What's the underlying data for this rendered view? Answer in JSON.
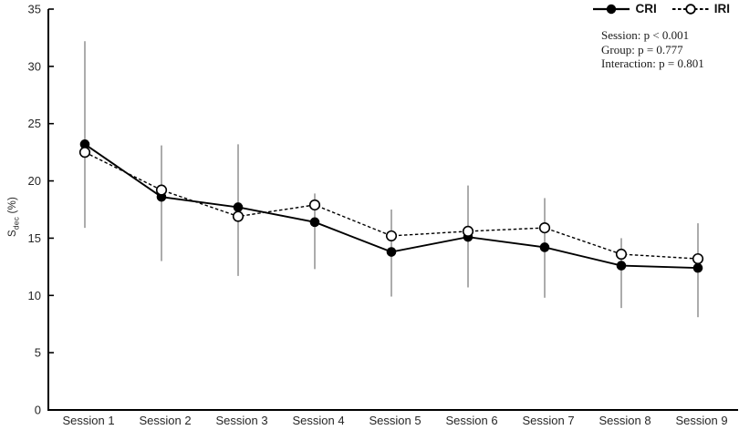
{
  "chart_data": {
    "type": "line",
    "categories": [
      "Session 1",
      "Session 2",
      "Session 3",
      "Session 4",
      "Session 5",
      "Session 6",
      "Session 7",
      "Session 8",
      "Session 9"
    ],
    "series": [
      {
        "name": "CRI",
        "marker": "filled-circle",
        "line_style": "solid",
        "color": "#000000",
        "values": [
          23.2,
          18.6,
          17.7,
          16.4,
          13.8,
          15.1,
          14.2,
          12.6,
          12.4
        ]
      },
      {
        "name": "IRI",
        "marker": "open-circle",
        "line_style": "dashed",
        "color": "#000000",
        "values": [
          22.5,
          19.2,
          16.9,
          17.9,
          15.2,
          15.6,
          15.9,
          13.6,
          13.2
        ]
      }
    ],
    "error_bars": {
      "top": [
        32.2,
        23.1,
        23.2,
        18.9,
        17.5,
        19.6,
        18.5,
        15.0,
        16.3
      ],
      "bottom": [
        15.9,
        13.0,
        11.7,
        12.3,
        9.9,
        10.7,
        9.8,
        8.9,
        8.1
      ],
      "color": "#757575"
    },
    "ylabel": "S_dec (%)",
    "ylabel_parts": {
      "base": "S",
      "subscript": "dec",
      "suffix": " (%)"
    },
    "ylim": [
      0,
      35
    ],
    "yticks": [
      0,
      5,
      10,
      15,
      20,
      25,
      30,
      35
    ],
    "grid": false,
    "legend": {
      "position": "top-right"
    },
    "annotations": [
      "Session: p < 0.001",
      "Group: p = 0.777",
      "Interaction: p = 0.801"
    ],
    "axis_color": "#000000",
    "text_color": "#262626"
  }
}
